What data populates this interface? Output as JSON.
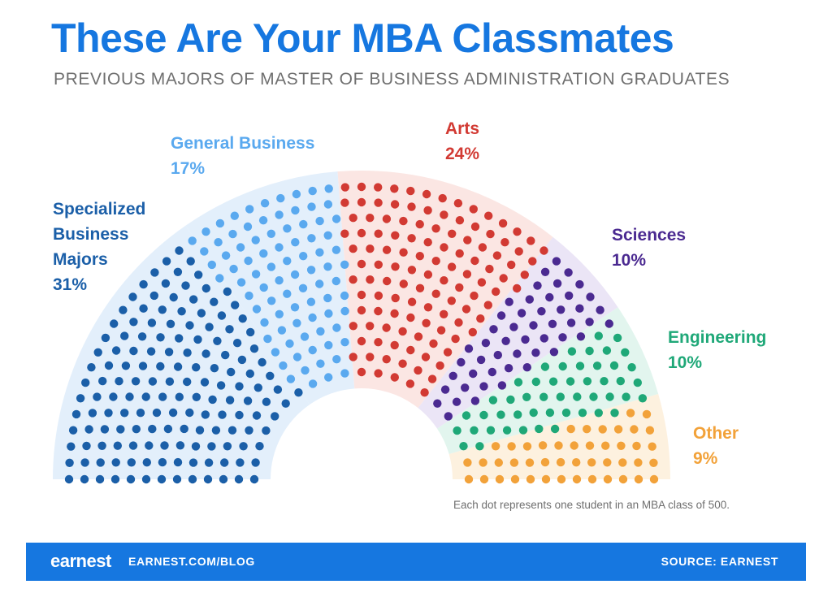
{
  "title": "These Are Your MBA Classmates",
  "subtitle": "PREVIOUS MAJORS OF MASTER OF BUSINESS ADMINISTRATION GRADUATES",
  "note": "Each dot represents one student in an MBA class of 500.",
  "footer": {
    "logo": "earnest",
    "url": "EARNEST.COM/BLOG",
    "source": "SOURCE: EARNEST"
  },
  "chart_data": {
    "type": "parliament",
    "total_dots": 500,
    "slices": [
      {
        "name": "Specialized Business Majors",
        "label_lines": [
          "Specialized",
          "Business",
          "Majors"
        ],
        "value_label": "31%",
        "value": 31,
        "color": "#1b5fa8",
        "band_color": "#e3effb"
      },
      {
        "name": "General Business",
        "label_lines": [
          "General Business"
        ],
        "value_label": "17%",
        "value": 17,
        "color": "#5aa9ef",
        "band_color": "#e3effb"
      },
      {
        "name": "Arts",
        "label_lines": [
          "Arts"
        ],
        "value_label": "24%",
        "value": 24,
        "color": "#d23a33",
        "band_color": "#fbe6e3"
      },
      {
        "name": "Sciences",
        "label_lines": [
          "Sciences"
        ],
        "value_label": "10%",
        "value": 10,
        "color": "#4b2a91",
        "band_color": "#ebe5f6"
      },
      {
        "name": "Engineering",
        "label_lines": [
          "Engineering"
        ],
        "value_label": "10%",
        "value": 10,
        "color": "#1fa878",
        "band_color": "#e2f5ee"
      },
      {
        "name": "Other",
        "label_lines": [
          "Other"
        ],
        "value_label": "9%",
        "value": 9,
        "color": "#f2a23a",
        "band_color": "#fdf1df"
      }
    ]
  }
}
